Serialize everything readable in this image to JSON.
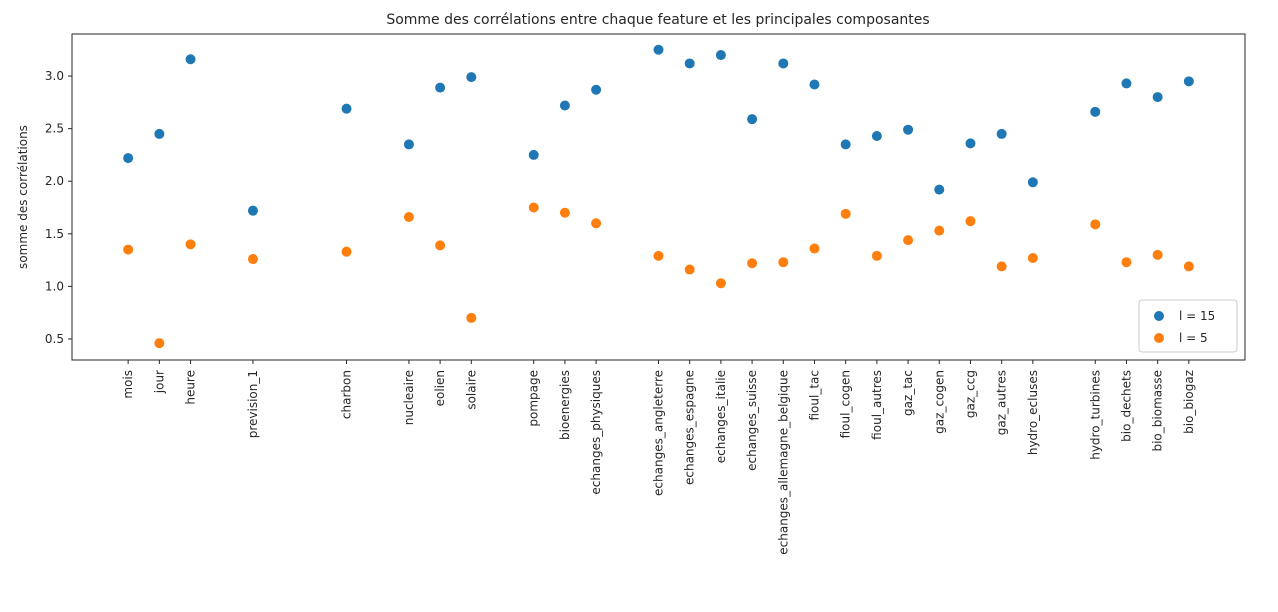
{
  "chart_data": {
    "type": "scatter",
    "title": "Somme des corrélations entre chaque feature et les principales composantes",
    "xlabel": "",
    "ylabel": "somme des corrélations",
    "ylim": [
      0.3,
      3.4
    ],
    "yticks": [
      "0.5",
      "1.0",
      "1.5",
      "2.0",
      "2.5",
      "3.0"
    ],
    "grid": false,
    "legend_position": "bottom-right",
    "x_positions": [
      0,
      1,
      2,
      4,
      7,
      9,
      10,
      11,
      13,
      14,
      15,
      17,
      18,
      19,
      20,
      21,
      22,
      23,
      24,
      25,
      26,
      27,
      28,
      29,
      31,
      32,
      33,
      34
    ],
    "categories": [
      "mois",
      "jour",
      "heure",
      "prevision_1",
      "charbon",
      "nucleaire",
      "eolien",
      "solaire",
      "pompage",
      "bioenergies",
      "echanges_physiques",
      "echanges_angleterre",
      "echanges_espagne",
      "echanges_italie",
      "echanges_suisse",
      "echanges_allemagne_belgique",
      "fioul_tac",
      "fioul_cogen",
      "fioul_autres",
      "gaz_tac",
      "gaz_cogen",
      "gaz_ccg",
      "gaz_autres",
      "hydro_ecluses",
      "hydro_turbines",
      "bio_dechets",
      "bio_biomasse",
      "bio_biogaz"
    ],
    "series": [
      {
        "name": "l = 15",
        "color": "#1f77b4",
        "values": [
          2.22,
          2.45,
          3.16,
          1.72,
          2.69,
          2.35,
          2.89,
          2.99,
          2.25,
          2.72,
          2.87,
          3.25,
          3.12,
          3.2,
          2.59,
          3.12,
          2.92,
          2.35,
          2.43,
          2.49,
          1.92,
          2.36,
          2.45,
          1.99,
          2.66,
          2.93,
          2.8,
          2.95
        ]
      },
      {
        "name": "l = 5",
        "color": "#ff7f0e",
        "values": [
          1.35,
          0.46,
          1.4,
          1.26,
          1.33,
          1.66,
          1.39,
          0.7,
          1.75,
          1.7,
          1.6,
          1.29,
          1.16,
          1.03,
          1.22,
          1.23,
          1.36,
          1.69,
          1.29,
          1.44,
          1.53,
          1.62,
          1.19,
          1.27,
          1.59,
          1.23,
          1.3,
          1.19
        ]
      }
    ]
  }
}
